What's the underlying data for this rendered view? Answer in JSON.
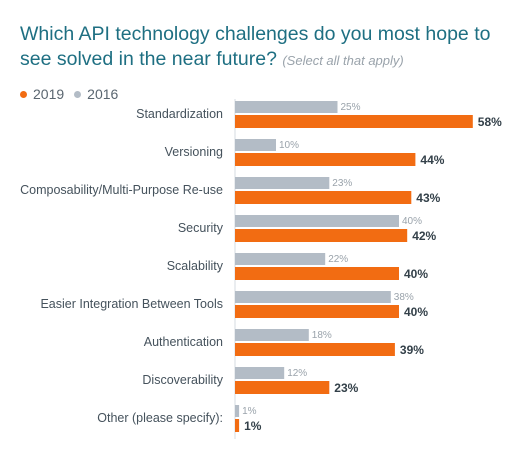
{
  "title": "Which API technology challenges do you most hope to see solved in the near future?",
  "subtitle": "(Select all that apply)",
  "colors": {
    "series_2019": "#f26c12",
    "series_2016": "#b3bcc6",
    "title": "#1e6f82"
  },
  "chart_data": {
    "type": "bar",
    "orientation": "horizontal",
    "categories": [
      "Standardization",
      "Versioning",
      "Composability/Multi-Purpose Re-use",
      "Security",
      "Scalability",
      "Easier Integration Between Tools",
      "Authentication",
      "Discoverability",
      "Other (please specify):"
    ],
    "series": [
      {
        "name": "2019",
        "values": [
          58,
          44,
          43,
          42,
          40,
          40,
          39,
          23,
          1
        ],
        "labels": [
          "58%",
          "44%",
          "43%",
          "42%",
          "40%",
          "40%",
          "39%",
          "23%",
          "1%"
        ],
        "color": "#f26c12"
      },
      {
        "name": "2016",
        "values": [
          25,
          10,
          23,
          40,
          22,
          38,
          18,
          12,
          1
        ],
        "labels": [
          "25%",
          "10%",
          "23%",
          "40%",
          "22%",
          "38%",
          "18%",
          "12%",
          "1%"
        ],
        "color": "#b3bcc6"
      }
    ],
    "xlim": [
      0,
      60
    ],
    "legend_position": "top-left",
    "grid": false
  }
}
